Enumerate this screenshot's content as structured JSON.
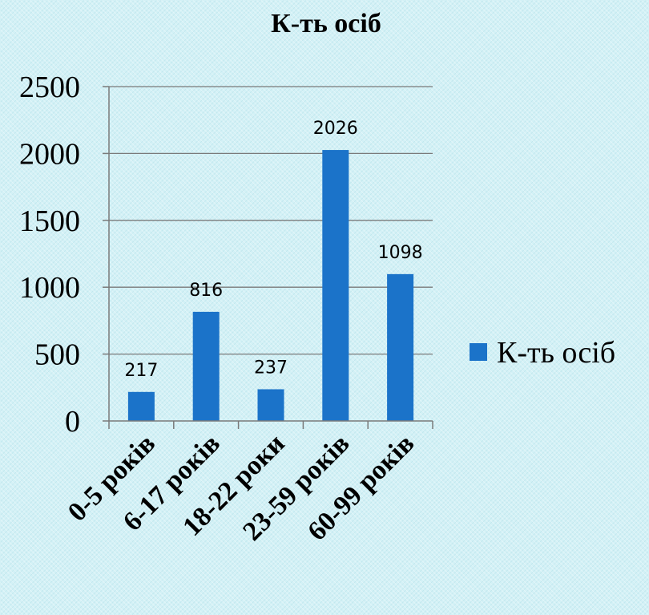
{
  "chart_data": {
    "type": "bar",
    "title": "К-ть осіб",
    "categories": [
      "0-5 років",
      "6-17 років",
      "18-22 роки",
      "23-59 років",
      "60-99 років"
    ],
    "series": [
      {
        "name": "К-ть осіб",
        "values": [
          217,
          816,
          237,
          2026,
          1098
        ],
        "color": "#1b73c9"
      }
    ],
    "data_labels": [
      "217",
      "816",
      "237",
      "2026",
      "1098"
    ],
    "ylim": [
      0,
      2500
    ],
    "yticks": [
      0,
      500,
      1000,
      1500,
      2000,
      2500
    ],
    "ytick_labels": [
      "0",
      "500",
      "1000",
      "1500",
      "2000",
      "2500"
    ],
    "xlabel": "",
    "ylabel": "",
    "grid": true,
    "legend": {
      "position": "right",
      "label": "К-ть осіб"
    }
  }
}
